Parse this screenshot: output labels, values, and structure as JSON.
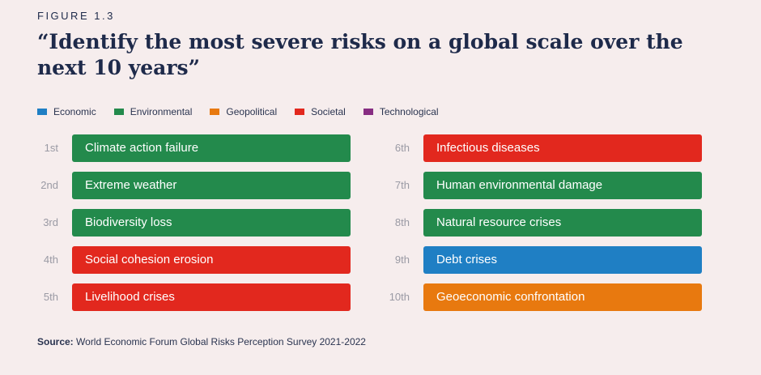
{
  "figure_label": "FIGURE 1.3",
  "title": "“Identify the most severe risks on a global scale over the next 10 years”",
  "source_label": "Source:",
  "source_text": "World Economic Forum Global Risks Perception Survey 2021-2022",
  "colors": {
    "Economic": "#1f7fc4",
    "Environmental": "#238a4c",
    "Geopolitical": "#e8790f",
    "Societal": "#e2281e",
    "Technological": "#872d82"
  },
  "chart_data": {
    "type": "table",
    "legend": [
      "Economic",
      "Environmental",
      "Geopolitical",
      "Societal",
      "Technological"
    ],
    "rows": [
      {
        "rank": "1st",
        "label": "Climate action failure",
        "category": "Environmental"
      },
      {
        "rank": "2nd",
        "label": "Extreme weather",
        "category": "Environmental"
      },
      {
        "rank": "3rd",
        "label": "Biodiversity loss",
        "category": "Environmental"
      },
      {
        "rank": "4th",
        "label": "Social cohesion erosion",
        "category": "Societal"
      },
      {
        "rank": "5th",
        "label": "Livelihood crises",
        "category": "Societal"
      },
      {
        "rank": "6th",
        "label": "Infectious diseases",
        "category": "Societal"
      },
      {
        "rank": "7th",
        "label": "Human environmental damage",
        "category": "Environmental"
      },
      {
        "rank": "8th",
        "label": "Natural resource crises",
        "category": "Environmental"
      },
      {
        "rank": "9th",
        "label": "Debt crises",
        "category": "Economic"
      },
      {
        "rank": "10th",
        "label": "Geoeconomic confrontation",
        "category": "Geopolitical"
      }
    ]
  }
}
